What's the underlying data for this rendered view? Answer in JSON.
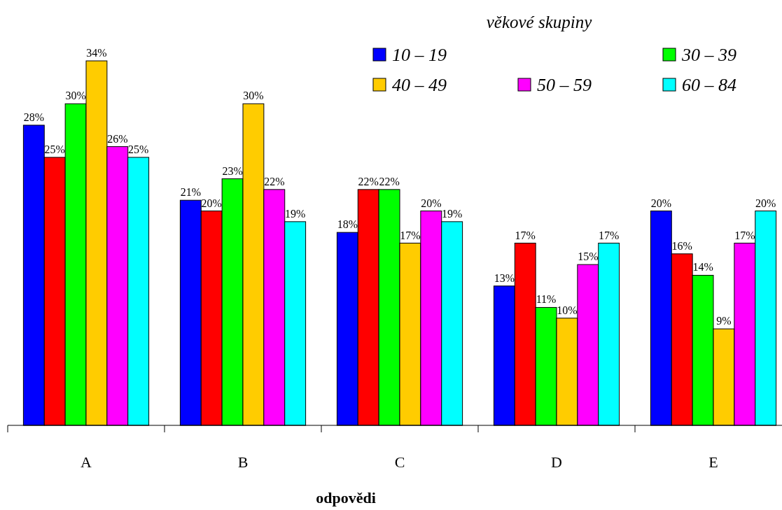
{
  "chart_data": {
    "type": "bar",
    "xlabel": "odpovědi",
    "legend_title": "věkové skupiny",
    "legend": "top right",
    "categories": [
      "A",
      "B",
      "C",
      "D",
      "E"
    ],
    "series": [
      {
        "name": "10 – 19",
        "color": "#0000ff",
        "values": [
          28,
          21,
          18,
          13,
          20
        ],
        "value_labels": [
          "28%",
          "21%",
          "18%",
          "13%",
          "20%"
        ]
      },
      {
        "color": "#ff0000",
        "values": [
          25,
          20,
          22,
          17,
          16
        ],
        "value_labels": [
          "25%",
          "20%",
          "22%",
          "17%",
          "16%"
        ]
      },
      {
        "name": "30 – 39",
        "color": "#00ff00",
        "values": [
          30,
          23,
          22,
          11,
          14
        ],
        "value_labels": [
          "30%",
          "23%",
          "22%",
          "11%",
          "14%"
        ]
      },
      {
        "name": "40 – 49",
        "color": "#ffcc00",
        "values": [
          34,
          30,
          17,
          10,
          9
        ],
        "value_labels": [
          "34%",
          "30%",
          "17%",
          "10%",
          "9%"
        ]
      },
      {
        "name": "50 – 59",
        "color": "#ff00ff",
        "values": [
          26,
          22,
          20,
          15,
          17
        ],
        "value_labels": [
          "26%",
          "22%",
          "20%",
          "15%",
          "17%"
        ]
      },
      {
        "name": "60 – 84",
        "color": "#00ffff",
        "values": [
          25,
          19,
          19,
          17,
          20
        ],
        "value_labels": [
          "25%",
          "19%",
          "19%",
          "17%",
          "20%"
        ]
      }
    ]
  }
}
